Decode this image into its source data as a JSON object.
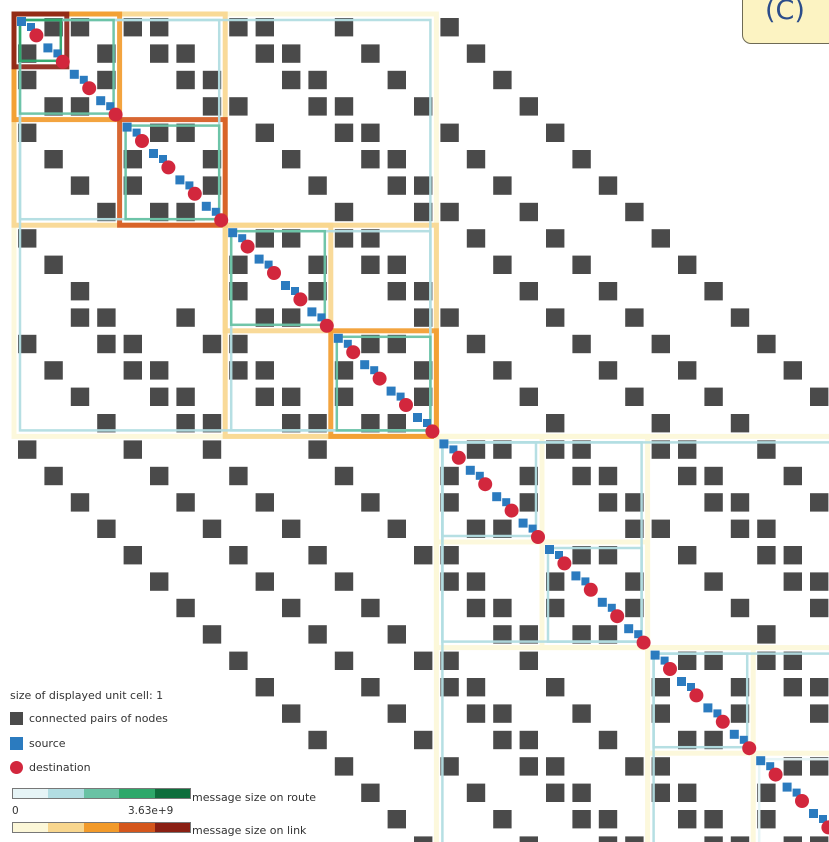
{
  "panel_label": "(C)",
  "legend": {
    "unit_cell": "size of displayed unit cell: 1",
    "connected": "connected pairs of nodes",
    "source": "source",
    "destination": "destination",
    "route_label": "message size on route",
    "route_min": "0",
    "route_max": "3.63e+9",
    "link_label": "message size on link"
  },
  "colors": {
    "connected": "#4a4a4a",
    "source": "#2b7bbf",
    "destination": "#d2273d",
    "route_ramp": [
      "#e6f4f6",
      "#b2dde2",
      "#69c2a4",
      "#2ea86a",
      "#0e6e3c"
    ],
    "link_ramp": [
      "#fcf7d8",
      "#f8d68e",
      "#f29a2a",
      "#d4561c",
      "#8a1f13"
    ]
  }
}
